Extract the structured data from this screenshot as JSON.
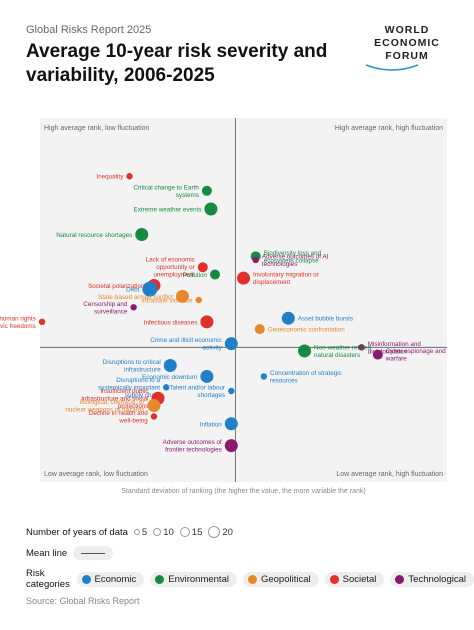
{
  "header": {
    "subtitle": "Global Risks Report 2025",
    "title": "Average 10-year risk severity and variability, 2006-2025",
    "logo_lines": [
      "WORLD",
      "ECONOMIC",
      "FORUM"
    ]
  },
  "chart_data": {
    "type": "scatter",
    "xlabel": "Standard deviation of ranking (the higher the value, the more variable the rank)",
    "quadrants": {
      "top_left": "High average rank, low fluctuation",
      "top_right": "High average rank, high fluctuation",
      "bottom_left": "Low average rank, low fluctuation",
      "bottom_right": "Low average rank, high fluctuation"
    },
    "xlim": [
      0,
      1
    ],
    "ylim": [
      0,
      1
    ],
    "x_mean": 0.48,
    "y_mean": 0.37,
    "grid": false,
    "colors": {
      "Economic": "#1f7fc8",
      "Environmental": "#168a43",
      "Geopolitical": "#e8872b",
      "Societal": "#e0312c",
      "Technological": "#8b1a6e"
    },
    "points": [
      {
        "label": "Inequality",
        "category": "Societal",
        "x": 0.22,
        "y": 0.84,
        "years": 5
      },
      {
        "label": "Critical change to Earth systems",
        "category": "Environmental",
        "x": 0.41,
        "y": 0.8,
        "years": 10
      },
      {
        "label": "Extreme weather events",
        "category": "Environmental",
        "x": 0.42,
        "y": 0.75,
        "years": 15
      },
      {
        "label": "Natural resource shortages",
        "category": "Environmental",
        "x": 0.25,
        "y": 0.68,
        "years": 15
      },
      {
        "label": "Lack of economic opportunity or unemployment",
        "category": "Societal",
        "x": 0.4,
        "y": 0.59,
        "years": 10
      },
      {
        "label": "Pollution",
        "category": "Environmental",
        "x": 0.43,
        "y": 0.57,
        "years": 10
      },
      {
        "label": "Societal polarization",
        "category": "Societal",
        "x": 0.28,
        "y": 0.54,
        "years": 15
      },
      {
        "label": "Debt",
        "category": "Economic",
        "x": 0.27,
        "y": 0.53,
        "years": 20
      },
      {
        "label": "Intrastate violence",
        "category": "Geopolitical",
        "x": 0.39,
        "y": 0.5,
        "years": 5
      },
      {
        "label": "State-based armed conflict",
        "category": "Geopolitical",
        "x": 0.35,
        "y": 0.51,
        "years": 15
      },
      {
        "label": "Censorship and surveillance",
        "category": "Technological",
        "x": 0.23,
        "y": 0.48,
        "years": 5
      },
      {
        "label": "Erosion of human rights and/or civic freedoms",
        "category": "Societal",
        "x": 0.005,
        "y": 0.44,
        "years": 5
      },
      {
        "label": "Infectious diseases",
        "category": "Societal",
        "x": 0.41,
        "y": 0.44,
        "years": 15
      },
      {
        "label": "Biodiversity loss and ecosystem collapse",
        "category": "Environmental",
        "x": 0.53,
        "y": 0.62,
        "years": 10
      },
      {
        "label": "Adverse outcomes of AI technologies",
        "category": "Technological",
        "x": 0.53,
        "y": 0.61,
        "years": 5
      },
      {
        "label": "Involuntary migration or displacement",
        "category": "Societal",
        "x": 0.5,
        "y": 0.56,
        "years": 15
      },
      {
        "label": "Asset bubble bursts",
        "category": "Economic",
        "x": 0.61,
        "y": 0.45,
        "years": 15
      },
      {
        "label": "Geoeconomic confrontation",
        "category": "Geopolitical",
        "x": 0.54,
        "y": 0.42,
        "years": 10
      },
      {
        "label": "Misinformation and disinformation",
        "category": "Technological",
        "x": 0.79,
        "y": 0.37,
        "years": 5
      },
      {
        "label": "Cyber espionage and warfare",
        "category": "Technological",
        "x": 0.83,
        "y": 0.35,
        "years": 10
      },
      {
        "label": "Non-weather related natural disasters",
        "category": "Environmental",
        "x": 0.65,
        "y": 0.36,
        "years": 15
      },
      {
        "label": "Crime and illicit economic activity",
        "category": "Economic",
        "x": 0.47,
        "y": 0.38,
        "years": 15
      },
      {
        "label": "Disruptions to critical infrastructure",
        "category": "Economic",
        "x": 0.32,
        "y": 0.32,
        "years": 15
      },
      {
        "label": "Economic downturn",
        "category": "Economic",
        "x": 0.41,
        "y": 0.29,
        "years": 15
      },
      {
        "label": "Concentration of strategic resources",
        "category": "Economic",
        "x": 0.55,
        "y": 0.29,
        "years": 5
      },
      {
        "label": "Disruptions to a systemically important supply chain",
        "category": "Economic",
        "x": 0.31,
        "y": 0.26,
        "years": 5
      },
      {
        "label": "Talent and/or labour shortages",
        "category": "Economic",
        "x": 0.47,
        "y": 0.25,
        "years": 5
      },
      {
        "label": "Insufficient public infrastructure and social protections",
        "category": "Societal",
        "x": 0.29,
        "y": 0.23,
        "years": 15
      },
      {
        "label": "Inflation",
        "category": "Economic",
        "x": 0.47,
        "y": 0.16,
        "years": 15
      },
      {
        "label": "Decline in health and well-being",
        "category": "Societal",
        "x": 0.28,
        "y": 0.18,
        "years": 5
      },
      {
        "label": "Biological, chemical, or nuclear weapons or hazards",
        "category": "Geopolitical",
        "x": 0.28,
        "y": 0.21,
        "years": 15
      },
      {
        "label": "Adverse outcomes of frontier technologies",
        "category": "Technological",
        "x": 0.47,
        "y": 0.1,
        "years": 15
      }
    ]
  },
  "legend": {
    "years_label": "Number of years of data",
    "years_values": [
      "5",
      "10",
      "15",
      "20"
    ],
    "mean_label": "Mean line",
    "categories_label": "Risk categories",
    "categories": [
      "Economic",
      "Environmental",
      "Geopolitical",
      "Societal",
      "Technological"
    ]
  },
  "source": "Source: Global Risks Report"
}
